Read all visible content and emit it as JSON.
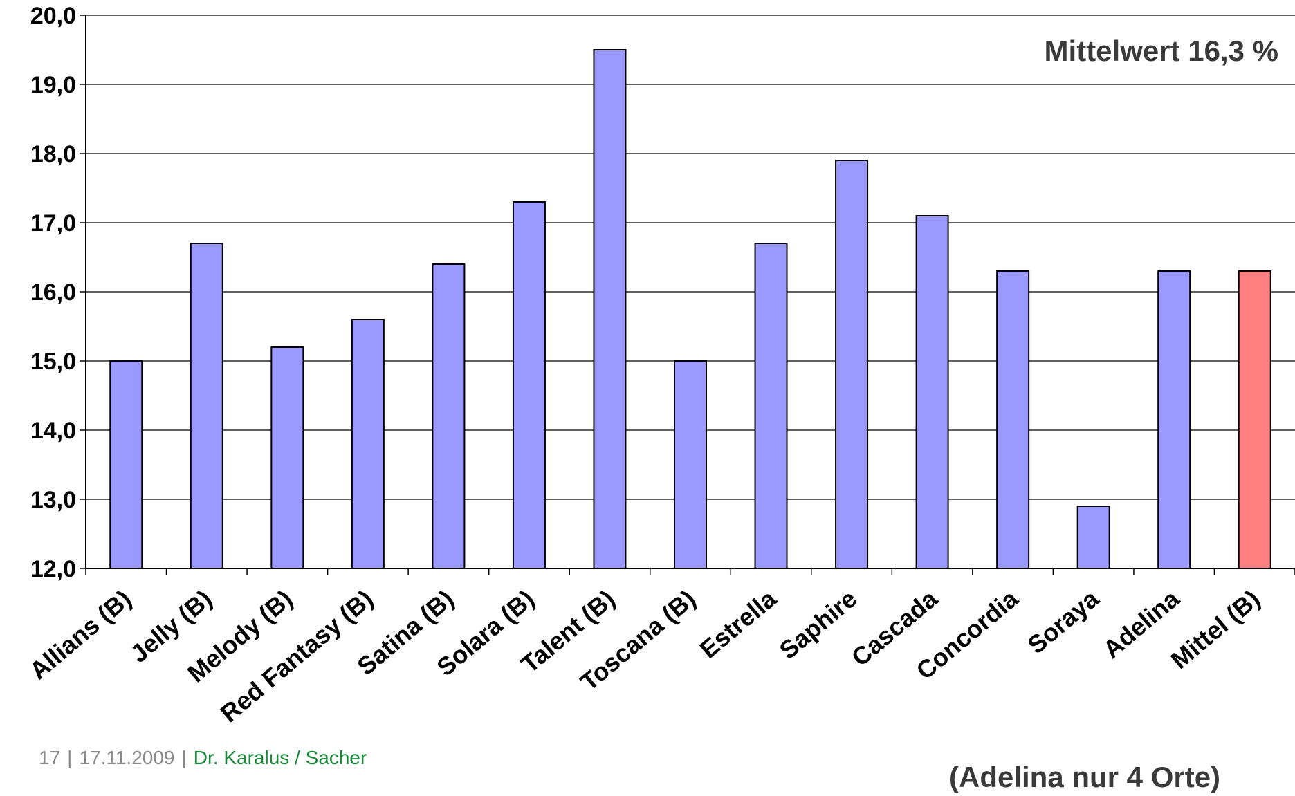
{
  "chart_data": {
    "type": "bar",
    "categories": [
      "Allians (B)",
      "Jelly (B)",
      "Melody (B)",
      "Red Fantasy (B)",
      "Satina (B)",
      "Solara (B)",
      "Talent (B)",
      "Toscana (B)",
      "Estrella",
      "Saphire",
      "Cascada",
      "Concordia",
      "Soraya",
      "Adelina",
      "Mittel (B)"
    ],
    "values": [
      15.0,
      16.7,
      15.2,
      15.6,
      16.4,
      17.3,
      19.5,
      15.0,
      16.7,
      17.9,
      17.1,
      16.3,
      12.9,
      16.3,
      16.3
    ],
    "ylim": [
      12.0,
      20.0
    ],
    "yticks": [
      "12,0",
      "13,0",
      "14,0",
      "15,0",
      "16,0",
      "17,0",
      "18,0",
      "19,0",
      "20,0"
    ],
    "bar_color": "#9999ff",
    "highlight_color": "#ff8080",
    "highlight_category": "Mittel (B)",
    "grid": true,
    "annotations": {
      "mean": "Mittelwert 16,3 %",
      "note": "(Adelina nur 4 Orte)"
    }
  },
  "footer": {
    "page": "17",
    "separator": "|",
    "date": "17.11.2009",
    "author": "Dr. Karalus / Sacher"
  }
}
